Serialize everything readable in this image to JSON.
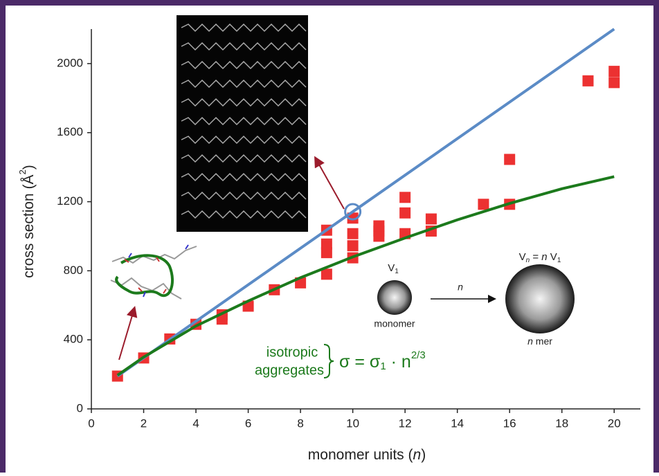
{
  "chart_data": {
    "type": "scatter",
    "x_label": {
      "text": "monomer units (",
      "italic": "n",
      "close": ")"
    },
    "y_label": {
      "text": "cross section (Å",
      "sup": "2",
      "close": ")"
    },
    "xlim": [
      0,
      21
    ],
    "ylim": [
      0,
      2200
    ],
    "xticks": [
      0,
      2,
      4,
      6,
      8,
      10,
      12,
      14,
      16,
      18,
      20
    ],
    "yticks": [
      0,
      400,
      800,
      1200,
      1600,
      2000
    ],
    "series": [
      {
        "kind": "markers",
        "color": "#ec3131",
        "x": [
          1,
          2,
          3,
          4,
          5,
          5,
          6,
          7,
          8,
          9,
          9,
          9,
          9,
          10,
          10,
          10,
          10,
          11,
          11,
          11,
          12,
          12,
          12,
          13,
          13,
          15,
          16,
          16,
          19,
          20,
          20
        ],
        "values": [
          190,
          295,
          405,
          490,
          520,
          545,
          595,
          690,
          730,
          780,
          905,
          955,
          1035,
          875,
          945,
          1015,
          1105,
          1000,
          1030,
          1060,
          1015,
          1135,
          1225,
          1030,
          1100,
          1185,
          1185,
          1445,
          1900,
          1890,
          1955
        ]
      },
      {
        "kind": "line",
        "color": "#5b8bc6",
        "x": [
          1,
          20
        ],
        "values": [
          190,
          2200
        ]
      },
      {
        "kind": "line",
        "color": "#1c7a1c",
        "x": [
          1,
          2,
          4,
          6,
          8,
          10,
          12,
          14,
          16,
          18,
          20
        ],
        "values": [
          195,
          300,
          480,
          625,
          760,
          880,
          990,
          1095,
          1190,
          1275,
          1345
        ]
      }
    ],
    "annotations": {
      "group": [
        "isotropic",
        "aggregates"
      ],
      "formula": {
        "lhs": "σ = σ",
        "sub": "1",
        "mid": " · n",
        "sup": "2/3"
      },
      "inset": {
        "v1": "V",
        "v1_sub": "1",
        "monomer": "monomer",
        "arrow": "n",
        "vn": "V",
        "vn_sub": "n",
        "vn_eq": " = ",
        "vn_n": "n",
        "vn_v": " V",
        "vn_v_sub": "1",
        "nmer_n": "n",
        "nmer": " mer"
      }
    }
  }
}
